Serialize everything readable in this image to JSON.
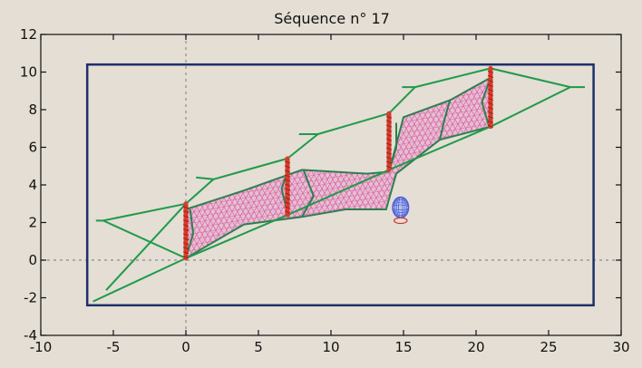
{
  "chart_data": {
    "type": "line",
    "title": "Séquence n° 17",
    "xlabel": "",
    "ylabel": "",
    "xlim": [
      -10,
      30
    ],
    "ylim": [
      -4,
      12
    ],
    "x_ticks": [
      -10,
      -5,
      0,
      5,
      10,
      15,
      20,
      25,
      30
    ],
    "x_tick_labels": [
      "-10",
      "-5",
      "0",
      "5",
      "10",
      "15",
      "20",
      "25",
      "30"
    ],
    "y_ticks": [
      -4,
      -2,
      0,
      2,
      4,
      6,
      8,
      10,
      12
    ],
    "y_tick_labels": [
      "-4",
      "-2",
      "0",
      "2",
      "4",
      "6",
      "8",
      "10",
      "12"
    ],
    "grid": false,
    "reference_lines": {
      "x": 0,
      "y": 0,
      "style": "dotted"
    },
    "boundary_rect": {
      "x": [
        -6.8,
        28.1
      ],
      "y": [
        -2.4,
        10.4
      ]
    },
    "vertical_bars": [
      {
        "x": 0.0,
        "y": [
          0.1,
          3.0
        ]
      },
      {
        "x": 7.0,
        "y": [
          2.4,
          5.4
        ]
      },
      {
        "x": 14.0,
        "y": [
          4.8,
          7.8
        ]
      },
      {
        "x": 21.0,
        "y": [
          7.1,
          10.2
        ]
      }
    ],
    "green_frames": [
      [
        [
          -6.4,
          -2.2
        ],
        [
          0.0,
          0.1
        ],
        [
          0.0,
          3.0
        ],
        [
          -5.7,
          2.1
        ],
        [
          -6.2,
          2.1
        ]
      ],
      [
        [
          -5.7,
          2.1
        ],
        [
          0.0,
          0.1
        ]
      ],
      [
        [
          -5.5,
          -1.6
        ],
        [
          0.0,
          3.0
        ]
      ],
      [
        [
          0.0,
          0.1
        ],
        [
          7.0,
          2.4
        ],
        [
          7.0,
          5.4
        ],
        [
          1.9,
          4.3
        ],
        [
          0.7,
          4.4
        ]
      ],
      [
        [
          1.9,
          4.3
        ],
        [
          0.0,
          3.0
        ]
      ],
      [
        [
          7.0,
          2.4
        ],
        [
          14.0,
          4.8
        ],
        [
          14.0,
          7.8
        ],
        [
          9.1,
          6.7
        ],
        [
          7.8,
          6.7
        ]
      ],
      [
        [
          9.1,
          6.7
        ],
        [
          7.0,
          5.4
        ]
      ],
      [
        [
          14.0,
          4.8
        ],
        [
          21.0,
          7.1
        ],
        [
          21.0,
          10.2
        ],
        [
          15.8,
          9.2
        ],
        [
          14.9,
          9.2
        ]
      ],
      [
        [
          15.8,
          9.2
        ],
        [
          14.0,
          7.8
        ]
      ],
      [
        [
          21.0,
          7.1
        ],
        [
          26.5,
          9.2
        ],
        [
          21.0,
          10.2
        ]
      ],
      [
        [
          26.5,
          9.2
        ],
        [
          27.5,
          9.2
        ]
      ]
    ],
    "mesh_outline": [
      [
        0.0,
        0.1
      ],
      [
        4.0,
        1.9
      ],
      [
        8.0,
        2.3
      ],
      [
        11.0,
        2.7
      ],
      [
        13.8,
        2.7
      ],
      [
        14.5,
        4.6
      ],
      [
        17.5,
        6.4
      ],
      [
        21.0,
        7.1
      ],
      [
        21.0,
        9.7
      ],
      [
        18.2,
        8.5
      ],
      [
        15.0,
        7.6
      ],
      [
        14.0,
        4.7
      ],
      [
        12.5,
        4.6
      ],
      [
        8.0,
        4.8
      ],
      [
        4.0,
        3.7
      ],
      [
        0.0,
        2.7
      ]
    ],
    "mesh_sections": [
      [
        [
          0.0,
          0.1
        ],
        [
          0.5,
          1.4
        ],
        [
          0.3,
          2.7
        ]
      ],
      [
        [
          7.0,
          2.5
        ],
        [
          6.6,
          3.8
        ],
        [
          7.0,
          4.7
        ]
      ],
      [
        [
          8.0,
          2.3
        ],
        [
          8.8,
          3.4
        ],
        [
          8.1,
          4.8
        ]
      ],
      [
        [
          14.0,
          4.7
        ],
        [
          14.5,
          6.0
        ],
        [
          14.5,
          7.3
        ]
      ],
      [
        [
          17.5,
          6.4
        ],
        [
          17.8,
          7.4
        ],
        [
          18.2,
          8.5
        ]
      ],
      [
        [
          20.9,
          7.1
        ],
        [
          20.4,
          8.4
        ],
        [
          21.0,
          9.7
        ]
      ]
    ],
    "small_features": {
      "blue_sphere": {
        "x": 14.8,
        "y": 2.8,
        "rx": 0.55,
        "ry": 0.55
      },
      "red_loop": {
        "x": 14.8,
        "y": 2.1,
        "rx": 0.45,
        "ry": 0.15
      }
    },
    "colors": {
      "background": "#e4ded4",
      "axes": "#111111",
      "boundary": "#1f2f6a",
      "reference": "#999999",
      "green": "#1f9a4a",
      "mesh": "#d6479f",
      "mesh_fill": "#e6a8cb",
      "mesh_edge": "#2d7f50",
      "bar": "#d93a2b",
      "sphere": "#4a5fd2",
      "loop": "#cc3333"
    }
  }
}
